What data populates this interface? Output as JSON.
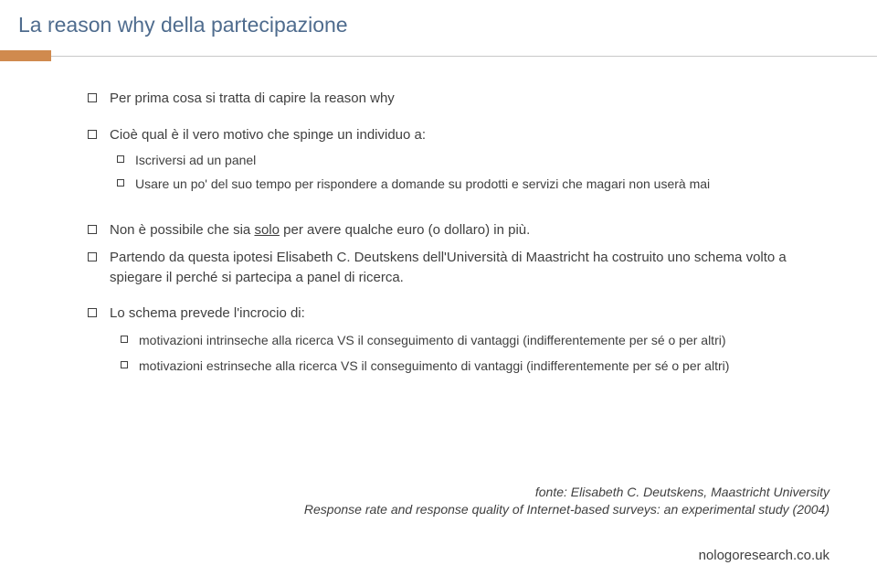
{
  "title": "La reason why della partecipazione",
  "bullets": {
    "b1": "Per prima cosa si tratta di capire la reason why",
    "b2": "Cioè qual è il vero motivo che spinge un individuo a:",
    "b2a": "Iscriversi ad un panel",
    "b2b": "Usare un po' del suo tempo per rispondere a domande su prodotti e servizi che magari non userà mai",
    "b3_pre": "Non è possibile che sia ",
    "b3_u": "solo",
    "b3_post": " per avere qualche euro (o dollaro) in più.",
    "b4": "Partendo da questa ipotesi Elisabeth C. Deutskens dell'Università di Maastricht ha costruito uno schema volto a spiegare il perché si partecipa a panel di ricerca.",
    "b5": "Lo schema prevede l'incrocio di:",
    "b5a": "motivazioni intrinseche alla ricerca VS il conseguimento di vantaggi (indifferentemente per sé o per altri)",
    "b5b": "motivazioni estrinseche alla ricerca VS il conseguimento di vantaggi (indifferentemente per sé o per altri)"
  },
  "footer": {
    "line1": "fonte: Elisabeth C. Deutskens, Maastricht University",
    "line2": "Response rate and response quality of Internet-based surveys: an experimental study (2004)"
  },
  "brand": "nologoresearch.co.uk",
  "colors": {
    "title": "#4f6c8e",
    "accent": "#d08a4e",
    "divider": "#c8c8c8",
    "text": "#3f3f3f"
  }
}
